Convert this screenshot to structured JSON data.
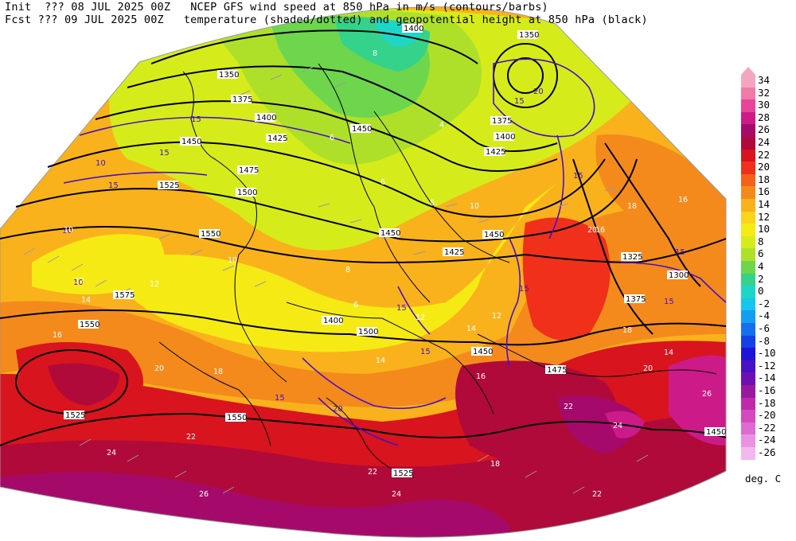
{
  "header": {
    "line1_left": "Init  ??? 08 JUL 2025 00Z",
    "line1_right": "NCEP GFS wind speed at 850 hPa in m/s (contours/barbs)",
    "line2_left": "Fcst ??? 09 JUL 2025 00Z",
    "line2_right": "temperature (shaded/dotted) and geopotential height at 850 hPa (black)"
  },
  "colorbar": {
    "units": "deg. C",
    "levels": [
      {
        "label": "34",
        "color": "#f4a6c0"
      },
      {
        "label": "32",
        "color": "#f07aa8"
      },
      {
        "label": "30",
        "color": "#e8449a"
      },
      {
        "label": "28",
        "color": "#cc1b88"
      },
      {
        "label": "26",
        "color": "#a50a6a"
      },
      {
        "label": "24",
        "color": "#b00a3a"
      },
      {
        "label": "22",
        "color": "#d8141e"
      },
      {
        "label": "20",
        "color": "#f0301a"
      },
      {
        "label": "18",
        "color": "#f2621a"
      },
      {
        "label": "16",
        "color": "#f48a1c"
      },
      {
        "label": "14",
        "color": "#f9b21c"
      },
      {
        "label": "12",
        "color": "#fbd41c"
      },
      {
        "label": "10",
        "color": "#f6ea14"
      },
      {
        "label": "8",
        "color": "#d6ec1a"
      },
      {
        "label": "6",
        "color": "#aee02a"
      },
      {
        "label": "4",
        "color": "#6ed64c"
      },
      {
        "label": "2",
        "color": "#34d28a"
      },
      {
        "label": "0",
        "color": "#1ed6c8"
      },
      {
        "label": "-2",
        "color": "#16c6ee"
      },
      {
        "label": "-4",
        "color": "#149ef2"
      },
      {
        "label": "-6",
        "color": "#1470ee"
      },
      {
        "label": "-8",
        "color": "#1440e6"
      },
      {
        "label": "-10",
        "color": "#1e14d8"
      },
      {
        "label": "-12",
        "color": "#4a10c4"
      },
      {
        "label": "-14",
        "color": "#6c10b2"
      },
      {
        "label": "-16",
        "color": "#9a189e"
      },
      {
        "label": "-18",
        "color": "#c02aaa"
      },
      {
        "label": "-20",
        "color": "#d448c0"
      },
      {
        "label": "-22",
        "color": "#e06ad4"
      },
      {
        "label": "-24",
        "color": "#ea92e2"
      },
      {
        "label": "-26",
        "color": "#f2b8ee"
      }
    ]
  },
  "height_labels": [
    "1400",
    "1350",
    "1375",
    "1400",
    "1425",
    "1450",
    "1450",
    "1475",
    "1500",
    "1525",
    "1550",
    "1575",
    "1550",
    "1525",
    "1450",
    "1425",
    "1450",
    "1425",
    "1375",
    "1400",
    "1350",
    "1325",
    "1300",
    "1375",
    "1500",
    "1525",
    "1550",
    "1475",
    "1450",
    "1400",
    "1450"
  ],
  "wind_labels": [
    "15",
    "15",
    "10",
    "15",
    "10",
    "10",
    "15",
    "15",
    "15",
    "20",
    "15",
    "15",
    "15",
    "20",
    "15",
    "15"
  ],
  "temp_labels": [
    "8",
    "6",
    "4",
    "10",
    "12",
    "14",
    "16",
    "18",
    "20",
    "22",
    "24",
    "26",
    "24",
    "22",
    "20",
    "18",
    "16",
    "14",
    "12",
    "10",
    "8",
    "6",
    "6",
    "8",
    "10",
    "12",
    "14",
    "16",
    "18",
    "22",
    "24",
    "26",
    "22",
    "20",
    "18",
    "16",
    "14",
    "12"
  ]
}
